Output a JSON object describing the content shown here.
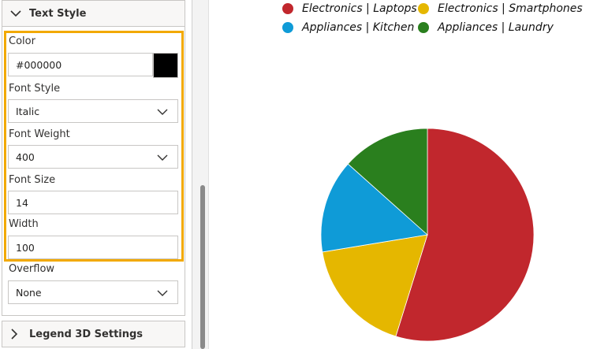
{
  "panel": {
    "text_style": {
      "title": "Text Style",
      "color_label": "Color",
      "color_value": "#000000",
      "font_style_label": "Font Style",
      "font_style_value": "Italic",
      "font_weight_label": "Font Weight",
      "font_weight_value": "400",
      "font_size_label": "Font Size",
      "font_size_value": "14",
      "width_label": "Width",
      "width_value": "100",
      "overflow_label": "Overflow",
      "overflow_value": "None"
    },
    "legend_3d": {
      "title": "Legend 3D Settings"
    },
    "highlight_color": "#f2a900"
  },
  "chart_data": {
    "type": "pie",
    "categories": [
      "Electronics | Laptops",
      "Electronics | Smartphones",
      "Appliances | Kitchen",
      "Appliances | Laundry"
    ],
    "values": [
      54.8,
      17.6,
      14.2,
      13.4
    ],
    "colors": [
      "#c1272d",
      "#e5b700",
      "#0f9bd7",
      "#2a7f1e"
    ],
    "legend_position": "top"
  }
}
